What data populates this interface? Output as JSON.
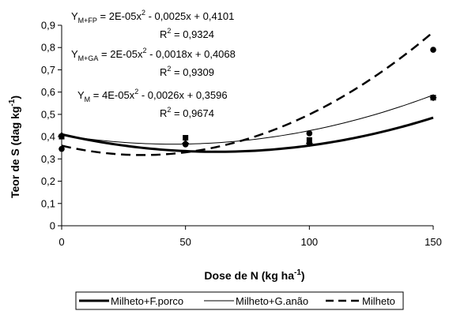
{
  "chart_data": {
    "type": "scatter",
    "xlabel": "Dose de N (kg ha",
    "xlabel_sup": "-1",
    "xlabel_end": ")",
    "ylabel": "Teor de S (dag kg",
    "ylabel_sup": "-1",
    "ylabel_end": ")",
    "xlim": [
      0,
      150
    ],
    "ylim": [
      0,
      0.9
    ],
    "xticks": [
      0,
      50,
      100,
      150
    ],
    "yticks": [
      0,
      0.1,
      0.2,
      0.3,
      0.4,
      0.5,
      0.6,
      0.7,
      0.8,
      0.9
    ],
    "xtick_labels": [
      "0",
      "50",
      "100",
      "150"
    ],
    "ytick_labels": [
      "0",
      "0,1",
      "0,2",
      "0,3",
      "0,4",
      "0,5",
      "0,6",
      "0,7",
      "0,8",
      "0,9"
    ],
    "grid": false,
    "legend_position": "bottom",
    "series": [
      {
        "name": "Milheto+F.porco",
        "marker": "square",
        "line": "thick-solid",
        "color": "#000000",
        "x": [
          0,
          50,
          100,
          150
        ],
        "y": [
          0.4,
          0.395,
          0.385,
          0.575
        ],
        "coef": [
          2e-05,
          -0.0025,
          0.4101
        ]
      },
      {
        "name": "Milheto+G.anão",
        "marker": "diamond",
        "line": "thin-solid",
        "color": "#000000",
        "x": [
          0,
          50,
          100,
          150
        ],
        "y": [
          0.405,
          0.37,
          0.37,
          0.575
        ],
        "coef": [
          2e-05,
          -0.0018,
          0.4068
        ]
      },
      {
        "name": "Milheto",
        "marker": "circle",
        "line": "dashed",
        "color": "#000000",
        "x": [
          0,
          50,
          100,
          150
        ],
        "y": [
          0.345,
          0.365,
          0.415,
          0.79
        ],
        "coef": [
          4e-05,
          -0.0026,
          0.3596
        ]
      }
    ],
    "annotations": [
      {
        "y_prefix": "Y",
        "sub": "M+FP",
        "eq_a": " = 2E-05x",
        "eq_b": " - 0,0025x + 0,4101",
        "r2_value": " = 0,9324"
      },
      {
        "y_prefix": "Y",
        "sub": "M+GA",
        "eq_a": " = 2E-05x",
        "eq_b": " - 0,0018x + 0,4068",
        "r2_value": " = 0,9309"
      },
      {
        "y_prefix": "Y",
        "sub": "M",
        "eq_a": " = 4E-05x",
        "eq_b": " - 0,0026x + 0,3596",
        "r2_value": " = 0,9674"
      }
    ],
    "legend": [
      {
        "label": "Milheto+F.porco"
      },
      {
        "label": "Milheto+G.anão"
      },
      {
        "label": "Milheto"
      }
    ]
  }
}
